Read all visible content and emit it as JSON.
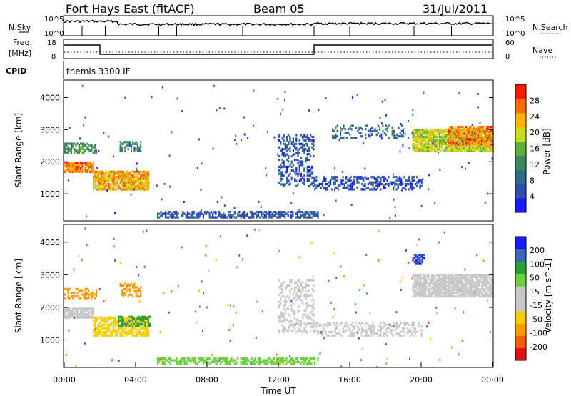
{
  "header": {
    "title": "Fort Hays East (fitACF)",
    "beam": "Beam 05",
    "date": "31/Jul/2011"
  },
  "noise_panel": {
    "left_label": "N.Sky",
    "right_label": "N.Search",
    "left_ticks": [
      "10^5",
      "10^0"
    ],
    "right_ticks": [
      "10^5",
      "10^0"
    ]
  },
  "freq_panel": {
    "left_label_1": "Freq.",
    "left_label_2": "[MHz]",
    "right_label": "Nave",
    "left_ticks": [
      "18",
      "8"
    ],
    "right_ticks": [
      "60",
      "0"
    ]
  },
  "cpid": {
    "label": "CPID",
    "value": "themis 3300 IF"
  },
  "colors": {
    "power_scale": [
      "#1a1aff",
      "#2e4fb0",
      "#2f6e88",
      "#3a8a5e",
      "#5fb13a",
      "#c8dd1e",
      "#ffb300",
      "#ff6a00",
      "#ff1a00"
    ],
    "velocity_scale": [
      "#e01010",
      "#ff5a00",
      "#ff9a00",
      "#f4d000",
      "#c8c8c8",
      "#c8c8c8",
      "#6ccf3c",
      "#2e9e3a",
      "#3a66b8",
      "#1a1aff"
    ],
    "ground_scatter": "#c8c8c8"
  },
  "chart_data": [
    {
      "type": "heatmap",
      "title": "Power",
      "xlabel": "",
      "ylabel": "Slant Range [km]",
      "xlim": [
        0,
        24
      ],
      "ylim": [
        200,
        4500
      ],
      "yticks": [
        "1000",
        "2000",
        "3000",
        "4000"
      ],
      "colorbar": {
        "label": "Power [dB]",
        "ticks": [
          "4",
          "8",
          "12",
          "16",
          "20",
          "24",
          "28"
        ],
        "range": [
          0,
          30
        ]
      },
      "regions": [
        {
          "t0": 0.0,
          "t1": 1.6,
          "r0": 1650,
          "r1": 1950,
          "value": 24,
          "density": 0.9
        },
        {
          "t0": 1.6,
          "t1": 4.7,
          "r0": 1100,
          "r1": 1700,
          "value": 22,
          "density": 0.85
        },
        {
          "t0": 0.0,
          "t1": 1.8,
          "r0": 2250,
          "r1": 2550,
          "value": 12,
          "density": 0.55
        },
        {
          "t0": 3.1,
          "t1": 4.3,
          "r0": 2300,
          "r1": 2600,
          "value": 10,
          "density": 0.5
        },
        {
          "t0": 5.2,
          "t1": 14.2,
          "r0": 230,
          "r1": 450,
          "value": 6,
          "density": 0.6
        },
        {
          "t0": 12.0,
          "t1": 14.0,
          "r0": 1200,
          "r1": 2800,
          "value": 6,
          "density": 0.35
        },
        {
          "t0": 14.0,
          "t1": 20.0,
          "r0": 1100,
          "r1": 1500,
          "value": 5,
          "density": 0.45
        },
        {
          "t0": 19.5,
          "t1": 24.0,
          "r0": 2300,
          "r1": 3000,
          "value": 18,
          "density": 0.85
        },
        {
          "t0": 21.5,
          "t1": 24.0,
          "r0": 2500,
          "r1": 3100,
          "value": 24,
          "density": 0.7
        },
        {
          "t0": 15.0,
          "t1": 19.0,
          "r0": 2700,
          "r1": 3100,
          "value": 8,
          "density": 0.3
        }
      ]
    },
    {
      "type": "heatmap",
      "title": "Velocity",
      "xlabel": "Time UT",
      "ylabel": "Slant Range [km]",
      "xlim": [
        0,
        24
      ],
      "ylim": [
        200,
        4500
      ],
      "xticks": [
        "00:00",
        "04:00",
        "08:00",
        "12:00",
        "16:00",
        "20:00",
        "00:00"
      ],
      "yticks": [
        "1000",
        "2000",
        "3000",
        "4000"
      ],
      "colorbar": {
        "label": "Velocity [m s^-1]",
        "ticks": [
          "200",
          "100",
          "50",
          "15",
          "-15",
          "-50",
          "-100",
          "-200"
        ],
        "range": [
          -250,
          250
        ]
      },
      "regions": [
        {
          "t0": 0.0,
          "t1": 1.6,
          "r0": 1650,
          "r1": 1950,
          "value": 0,
          "density": 0.85
        },
        {
          "t0": 1.6,
          "t1": 4.7,
          "r0": 1100,
          "r1": 1700,
          "value": -30,
          "density": 0.7
        },
        {
          "t0": 3.0,
          "t1": 4.8,
          "r0": 1400,
          "r1": 1700,
          "value": 60,
          "density": 0.6
        },
        {
          "t0": 0.0,
          "t1": 1.8,
          "r0": 2250,
          "r1": 2550,
          "value": -60,
          "density": 0.45
        },
        {
          "t0": 3.1,
          "t1": 4.3,
          "r0": 2300,
          "r1": 2700,
          "value": -80,
          "density": 0.45
        },
        {
          "t0": 5.2,
          "t1": 14.2,
          "r0": 230,
          "r1": 450,
          "value": 40,
          "density": 0.6
        },
        {
          "t0": 12.0,
          "t1": 14.0,
          "r0": 1200,
          "r1": 2800,
          "value": 0,
          "density": 0.35
        },
        {
          "t0": 14.0,
          "t1": 20.0,
          "r0": 1100,
          "r1": 1500,
          "value": 0,
          "density": 0.45
        },
        {
          "t0": 19.5,
          "t1": 24.0,
          "r0": 2300,
          "r1": 3000,
          "value": 0,
          "density": 0.85
        },
        {
          "t0": 19.5,
          "t1": 20.2,
          "r0": 3300,
          "r1": 3600,
          "value": 200,
          "density": 0.6
        }
      ]
    }
  ]
}
